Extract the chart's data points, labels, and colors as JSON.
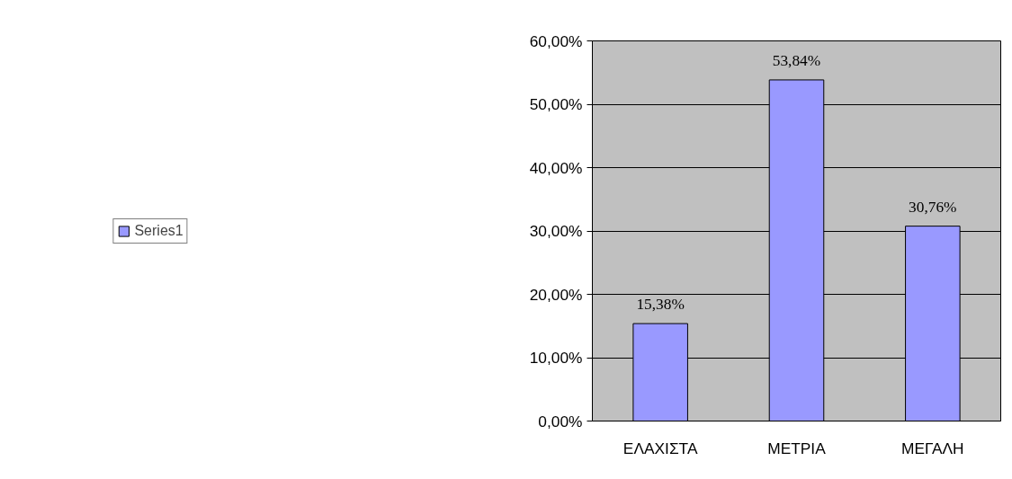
{
  "chart_data": {
    "type": "bar",
    "categories": [
      "ΕΛΑΧΙΣΤΑ",
      "ΜΕΤΡΙΑ",
      "ΜΕΓΑΛΗ"
    ],
    "series": [
      {
        "name": "Series1",
        "color": "#9999ff",
        "values": [
          15.38,
          53.84,
          30.76
        ],
        "value_labels": [
          "15,38%",
          "53,84%",
          "30,76%"
        ]
      }
    ],
    "ylim": [
      0,
      60
    ],
    "yticks": [
      {
        "value": 0,
        "label": "0,00%"
      },
      {
        "value": 10,
        "label": "10,00%"
      },
      {
        "value": 20,
        "label": "20,00%"
      },
      {
        "value": 30,
        "label": "30,00%"
      },
      {
        "value": 40,
        "label": "40,00%"
      },
      {
        "value": 50,
        "label": "50,00%"
      },
      {
        "value": 60,
        "label": "60,00%"
      }
    ],
    "grid": "y",
    "legend": "left"
  }
}
